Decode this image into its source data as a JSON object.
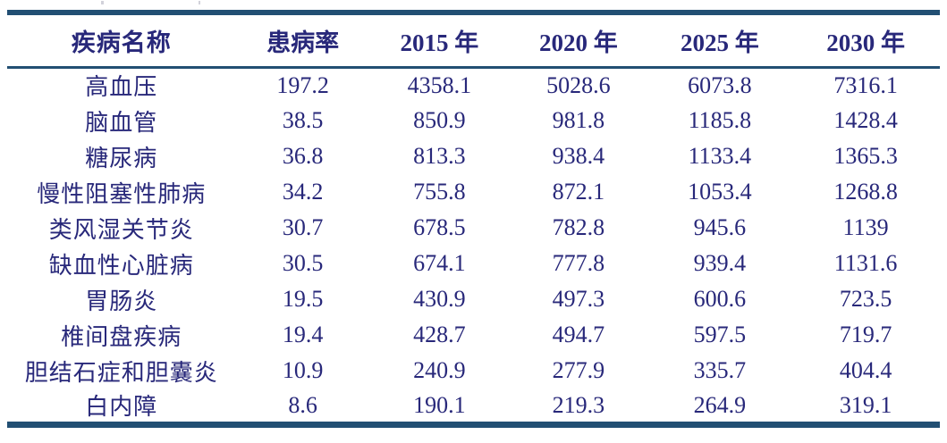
{
  "colors": {
    "rule": "#224f73",
    "text": "#28287a",
    "background": "#ffffff"
  },
  "table": {
    "columns": [
      {
        "key": "disease",
        "label": "疾病名称"
      },
      {
        "key": "rate",
        "label": "患病率"
      },
      {
        "key": "y2015",
        "label": "2015 年"
      },
      {
        "key": "y2020",
        "label": "2020 年"
      },
      {
        "key": "y2025",
        "label": "2025 年"
      },
      {
        "key": "y2030",
        "label": "2030 年"
      }
    ],
    "rows": [
      {
        "disease": "高血压",
        "rate": "197.2",
        "y2015": "4358.1",
        "y2020": "5028.6",
        "y2025": "6073.8",
        "y2030": "7316.1"
      },
      {
        "disease": "脑血管",
        "rate": "38.5",
        "y2015": "850.9",
        "y2020": "981.8",
        "y2025": "1185.8",
        "y2030": "1428.4"
      },
      {
        "disease": "糖尿病",
        "rate": "36.8",
        "y2015": "813.3",
        "y2020": "938.4",
        "y2025": "1133.4",
        "y2030": "1365.3"
      },
      {
        "disease": "慢性阻塞性肺病",
        "rate": "34.2",
        "y2015": "755.8",
        "y2020": "872.1",
        "y2025": "1053.4",
        "y2030": "1268.8"
      },
      {
        "disease": "类风湿关节炎",
        "rate": "30.7",
        "y2015": "678.5",
        "y2020": "782.8",
        "y2025": "945.6",
        "y2030": "1139"
      },
      {
        "disease": "缺血性心脏病",
        "rate": "30.5",
        "y2015": "674.1",
        "y2020": "777.8",
        "y2025": "939.4",
        "y2030": "1131.6"
      },
      {
        "disease": "胃肠炎",
        "rate": "19.5",
        "y2015": "430.9",
        "y2020": "497.3",
        "y2025": "600.6",
        "y2030": "723.5"
      },
      {
        "disease": "椎间盘疾病",
        "rate": "19.4",
        "y2015": "428.7",
        "y2020": "494.7",
        "y2025": "597.5",
        "y2030": "719.7"
      },
      {
        "disease": "胆结石症和胆囊炎",
        "rate": "10.9",
        "y2015": "240.9",
        "y2020": "277.9",
        "y2025": "335.7",
        "y2030": "404.4"
      },
      {
        "disease": "白内障",
        "rate": "8.6",
        "y2015": "190.1",
        "y2020": "219.3",
        "y2025": "264.9",
        "y2030": "319.1"
      }
    ]
  },
  "chart_data": {
    "type": "table",
    "title": "",
    "columns": [
      "疾病名称",
      "患病率",
      "2015 年",
      "2020 年",
      "2025 年",
      "2030 年"
    ],
    "rows": [
      [
        "高血压",
        197.2,
        4358.1,
        5028.6,
        6073.8,
        7316.1
      ],
      [
        "脑血管",
        38.5,
        850.9,
        981.8,
        1185.8,
        1428.4
      ],
      [
        "糖尿病",
        36.8,
        813.3,
        938.4,
        1133.4,
        1365.3
      ],
      [
        "慢性阻塞性肺病",
        34.2,
        755.8,
        872.1,
        1053.4,
        1268.8
      ],
      [
        "类风湿关节炎",
        30.7,
        678.5,
        782.8,
        945.6,
        1139
      ],
      [
        "缺血性心脏病",
        30.5,
        674.1,
        777.8,
        939.4,
        1131.6
      ],
      [
        "胃肠炎",
        19.5,
        430.9,
        497.3,
        600.6,
        723.5
      ],
      [
        "椎间盘疾病",
        19.4,
        428.7,
        494.7,
        597.5,
        719.7
      ],
      [
        "胆结石症和胆囊炎",
        10.9,
        240.9,
        277.9,
        335.7,
        404.4
      ],
      [
        "白内障",
        8.6,
        190.1,
        219.3,
        264.9,
        319.1
      ]
    ]
  }
}
